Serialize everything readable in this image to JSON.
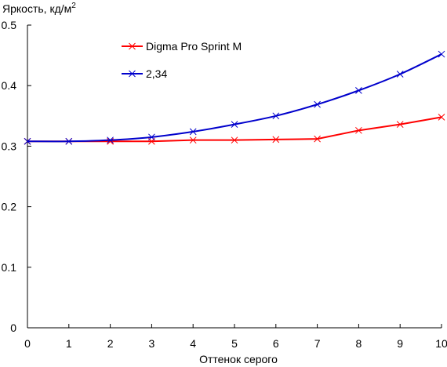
{
  "chart_data": {
    "type": "line",
    "title": "",
    "ylabel": "Яркость, кд/м",
    "ylabel_superscript": "2",
    "xlabel": "Оттенок серого",
    "x": [
      0,
      1,
      2,
      3,
      4,
      5,
      6,
      7,
      8,
      9,
      10
    ],
    "xlim": [
      0,
      10
    ],
    "ylim": [
      0,
      0.5
    ],
    "x_ticks": [
      "0",
      "1",
      "2",
      "3",
      "4",
      "5",
      "6",
      "7",
      "8",
      "9",
      "10"
    ],
    "y_ticks": [
      {
        "value": 0,
        "label": "0"
      },
      {
        "value": 0.1,
        "label": "0.1"
      },
      {
        "value": 0.2,
        "label": "0.2"
      },
      {
        "value": 0.3,
        "label": "0.3"
      },
      {
        "value": 0.4,
        "label": "0.4"
      },
      {
        "value": 0.5,
        "label": "0.5"
      }
    ],
    "grid": false,
    "legend_position": "top-center",
    "series": [
      {
        "name": "Digma Pro Sprint M",
        "color": "#ff0000",
        "marker": "x",
        "values": [
          0.308,
          0.308,
          0.308,
          0.308,
          0.31,
          0.31,
          0.311,
          0.312,
          0.326,
          0.336,
          0.348
        ]
      },
      {
        "name": "2,34",
        "color": "#0000cc",
        "marker": "x",
        "values": [
          0.308,
          0.308,
          0.31,
          0.315,
          0.324,
          0.336,
          0.35,
          0.369,
          0.392,
          0.419,
          0.452
        ]
      }
    ]
  }
}
